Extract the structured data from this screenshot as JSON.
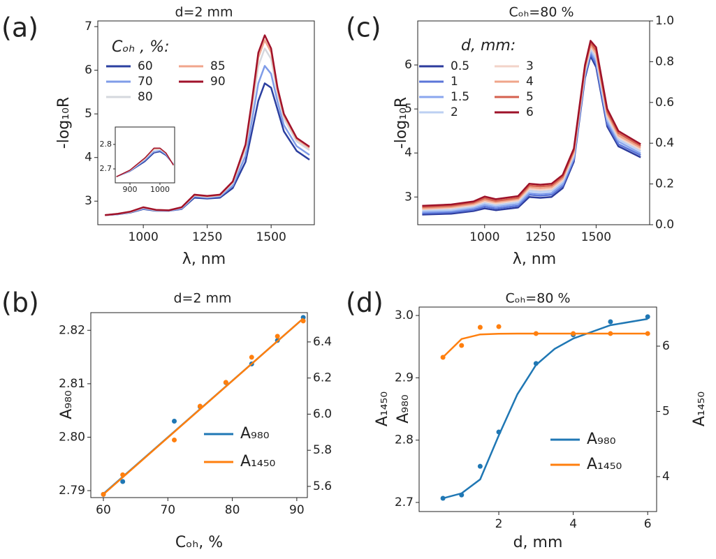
{
  "chart_data": [
    {
      "type": "line",
      "panel_label": "(a)",
      "title": "d=2 mm",
      "xlabel": "λ, nm",
      "ylabel": "-log₁₀R",
      "legend_title": "Cₒₕ , %:",
      "legend": "upper left",
      "x": [
        850,
        900,
        950,
        1000,
        1050,
        1100,
        1150,
        1200,
        1250,
        1300,
        1350,
        1400,
        1425,
        1450,
        1475,
        1500,
        1525,
        1550,
        1600,
        1650
      ],
      "series": [
        {
          "name": "60",
          "color": "#2b3fa0",
          "values": [
            2.68,
            2.7,
            2.74,
            2.82,
            2.78,
            2.78,
            2.82,
            3.08,
            3.06,
            3.08,
            3.3,
            3.9,
            4.6,
            5.3,
            5.7,
            5.6,
            5.1,
            4.6,
            4.15,
            3.95
          ]
        },
        {
          "name": "70",
          "color": "#7f9ce8",
          "values": [
            2.68,
            2.7,
            2.75,
            2.83,
            2.79,
            2.78,
            2.83,
            3.11,
            3.08,
            3.11,
            3.35,
            4.04,
            4.85,
            5.7,
            6.1,
            5.92,
            5.28,
            4.74,
            4.26,
            4.06
          ]
        },
        {
          "name": "80",
          "color": "#d5d8de",
          "values": [
            2.68,
            2.71,
            2.75,
            2.85,
            2.79,
            2.79,
            2.85,
            3.13,
            3.1,
            3.13,
            3.41,
            4.19,
            5.11,
            6.1,
            6.5,
            6.26,
            5.47,
            4.89,
            4.37,
            4.17
          ]
        },
        {
          "name": "85",
          "color": "#f0a58c",
          "values": [
            2.68,
            2.71,
            2.76,
            2.86,
            2.8,
            2.79,
            2.86,
            3.14,
            3.11,
            3.14,
            3.44,
            4.26,
            5.23,
            6.29,
            6.69,
            6.41,
            5.55,
            4.96,
            4.42,
            4.22
          ]
        },
        {
          "name": "90",
          "color": "#a0122a",
          "values": [
            2.68,
            2.71,
            2.76,
            2.86,
            2.8,
            2.79,
            2.86,
            3.15,
            3.12,
            3.15,
            3.45,
            4.3,
            5.3,
            6.4,
            6.8,
            6.5,
            5.6,
            5.0,
            4.45,
            4.25
          ]
        }
      ],
      "xlim": [
        822,
        1669
      ],
      "ylim": [
        2.46,
        7.13
      ],
      "xticks": [
        1000,
        1250,
        1500
      ],
      "yticks": [
        3,
        4,
        5,
        6,
        7
      ]
    },
    {
      "type": "line",
      "x": [
        855,
        900,
        950,
        980,
        1000,
        1020,
        1045
      ],
      "series": [
        {
          "color": "#2b3fa0",
          "values": [
            2.668,
            2.69,
            2.73,
            2.765,
            2.77,
            2.755,
            2.72
          ]
        },
        {
          "color": "#7f9ce8",
          "values": [
            2.668,
            2.691,
            2.735,
            2.771,
            2.775,
            2.758,
            2.719
          ]
        },
        {
          "color": "#d5d8de",
          "values": [
            2.668,
            2.693,
            2.74,
            2.778,
            2.78,
            2.762,
            2.717
          ]
        },
        {
          "color": "#f0a58c",
          "values": [
            2.668,
            2.694,
            2.743,
            2.782,
            2.783,
            2.764,
            2.716
          ]
        },
        {
          "color": "#a0122a",
          "values": [
            2.668,
            2.695,
            2.745,
            2.785,
            2.785,
            2.765,
            2.715
          ]
        }
      ],
      "xlim": [
        851,
        1049
      ],
      "ylim": [
        2.643,
        2.871
      ],
      "xticks": [
        900,
        1000
      ],
      "yticks": [
        2.7,
        2.8
      ]
    },
    {
      "type": "scatter",
      "panel_label": "(b)",
      "title": "d=2 mm",
      "xlabel": "Cₒₕ, %",
      "ylabel": "A₉₈₀",
      "legend": "lower right",
      "x": [
        60,
        63,
        71,
        75,
        79,
        83,
        87,
        91
      ],
      "fit_x": [
        60,
        91
      ],
      "series": [
        {
          "name": "A₉₈₀",
          "color": "#1f77b4",
          "values": [
            2.7893,
            2.7917,
            2.803,
            2.8057,
            2.8102,
            2.8137,
            2.8181,
            2.8224
          ],
          "fit": [
            2.7894,
            2.8222
          ]
        },
        {
          "name": "A₁₄₅₀",
          "color": "#ff7f0e",
          "axis": "y2",
          "values": [
            5.556,
            5.664,
            5.857,
            6.044,
            6.176,
            6.315,
            6.431,
            6.516
          ],
          "fit": [
            5.556,
            6.53
          ]
        }
      ],
      "xlim": [
        58.05,
        91.64
      ],
      "ylim": [
        2.7887,
        2.8233
      ],
      "y2lim": [
        5.538,
        6.562
      ],
      "xticks": [
        60,
        70,
        80,
        90
      ],
      "yticks": [
        2.79,
        {
          "value": 2.8,
          "label": "2.80"
        },
        2.81,
        2.82
      ],
      "y2ticks": [
        5.6,
        5.8,
        {
          "value": 6,
          "label": "6.0"
        },
        6.2,
        6.4
      ]
    },
    {
      "type": "line",
      "panel_label": "(c)",
      "title": "Cₒₕ=80 %",
      "xlabel": "λ, nm",
      "ylabel": "-log₁₀R",
      "legend_title": "d, mm:",
      "legend": "upper left",
      "x": [
        720,
        850,
        950,
        1000,
        1050,
        1150,
        1200,
        1250,
        1300,
        1350,
        1400,
        1450,
        1475,
        1500,
        1550,
        1600,
        1700
      ],
      "series": [
        {
          "name": "0.5",
          "color": "#2c3b9c",
          "values": [
            2.6,
            2.62,
            2.68,
            2.74,
            2.7,
            2.76,
            3.0,
            2.98,
            3.0,
            3.2,
            3.8,
            5.7,
            6.2,
            5.95,
            4.6,
            4.15,
            3.9
          ]
        },
        {
          "name": "1",
          "color": "#5b76d8",
          "values": [
            2.63,
            2.65,
            2.71,
            2.78,
            2.74,
            2.8,
            3.05,
            3.03,
            3.05,
            3.25,
            3.85,
            5.75,
            6.25,
            6.02,
            4.66,
            4.2,
            3.95
          ]
        },
        {
          "name": "1.5",
          "color": "#8aa6ee",
          "values": [
            2.66,
            2.68,
            2.75,
            2.82,
            2.78,
            2.84,
            3.09,
            3.07,
            3.09,
            3.29,
            3.89,
            5.79,
            6.31,
            6.09,
            4.72,
            4.26,
            3.99
          ]
        },
        {
          "name": "2",
          "color": "#bcd0f2",
          "values": [
            2.69,
            2.71,
            2.78,
            2.86,
            2.81,
            2.88,
            3.14,
            3.12,
            3.14,
            3.34,
            3.94,
            5.84,
            6.36,
            6.15,
            4.78,
            4.31,
            4.04
          ]
        },
        {
          "name": "3",
          "color": "#f2d3c8",
          "values": [
            2.72,
            2.75,
            2.81,
            2.9,
            2.85,
            2.92,
            3.18,
            3.16,
            3.18,
            3.38,
            3.98,
            5.88,
            6.41,
            6.22,
            4.84,
            4.36,
            4.08
          ]
        },
        {
          "name": "4",
          "color": "#f0a58a",
          "values": [
            2.74,
            2.77,
            2.84,
            2.93,
            2.88,
            2.95,
            3.22,
            3.2,
            3.22,
            3.42,
            4.02,
            5.92,
            6.45,
            6.27,
            4.89,
            4.4,
            4.12
          ]
        },
        {
          "name": "5",
          "color": "#d5604e",
          "values": [
            2.77,
            2.8,
            2.87,
            2.97,
            2.91,
            2.98,
            3.26,
            3.24,
            3.26,
            3.46,
            4.06,
            5.96,
            6.5,
            6.33,
            4.94,
            4.45,
            4.16
          ]
        },
        {
          "name": "6",
          "color": "#9e1229",
          "values": [
            2.8,
            2.83,
            2.9,
            3.01,
            2.95,
            3.02,
            3.3,
            3.28,
            3.3,
            3.5,
            4.1,
            6.0,
            6.55,
            6.4,
            5.0,
            4.5,
            4.2
          ]
        }
      ],
      "xlim": [
        700,
        1740
      ],
      "ylim": [
        2.37,
        7.0
      ],
      "y2lim": [
        0,
        1
      ],
      "xticks": [
        1000,
        1250,
        1500
      ],
      "yticks": [
        3,
        4,
        5,
        6
      ],
      "y2ticks": [
        {
          "value": 0,
          "label": "0.0"
        },
        0.2,
        0.4,
        0.6,
        0.8,
        {
          "value": 1,
          "label": "1.0"
        }
      ]
    },
    {
      "type": "scatter",
      "panel_label": "(d)",
      "title": "Cₒₕ=80 %",
      "xlabel": "d, mm",
      "ylabel": "A₉₈₀",
      "ylabel_outer": "A₁₄₅₀",
      "y2label": "A₁₄₅₀",
      "legend": "lower right",
      "x": [
        0.5,
        1,
        1.5,
        2,
        3,
        4,
        5,
        6
      ],
      "fit_x": [
        0.5,
        1,
        1.5,
        2,
        2.5,
        3,
        3.5,
        4,
        5,
        6
      ],
      "series": [
        {
          "name": "A₉₈₀",
          "color": "#1f77b4",
          "values": [
            2.7067,
            2.712,
            2.758,
            2.813,
            2.923,
            2.969,
            2.99,
            2.998
          ],
          "fit": [
            2.7067,
            2.7146,
            2.737,
            2.8075,
            2.8736,
            2.9206,
            2.9464,
            2.963,
            2.9844,
            2.9945
          ]
        },
        {
          "name": "A₁₄₅₀",
          "color": "#ff7f0e",
          "axis": "y2",
          "values": [
            5.829,
            6.011,
            6.289,
            6.299,
            6.193,
            6.193,
            6.193,
            6.193
          ],
          "fit": [
            5.83,
            6.11,
            6.18,
            6.19,
            6.193,
            6.193,
            6.193,
            6.193,
            6.193,
            6.193
          ]
        }
      ],
      "xlim": [
        -0.14,
        6.24
      ],
      "ylim": [
        2.6854,
        3.0135
      ],
      "y2lim": [
        3.465,
        6.599
      ],
      "xticks": [
        2,
        4,
        6
      ],
      "yticks": [
        2.7,
        2.8,
        2.9,
        {
          "value": 3,
          "label": "3.0"
        }
      ],
      "y2ticks": [
        4,
        5,
        6
      ]
    }
  ]
}
